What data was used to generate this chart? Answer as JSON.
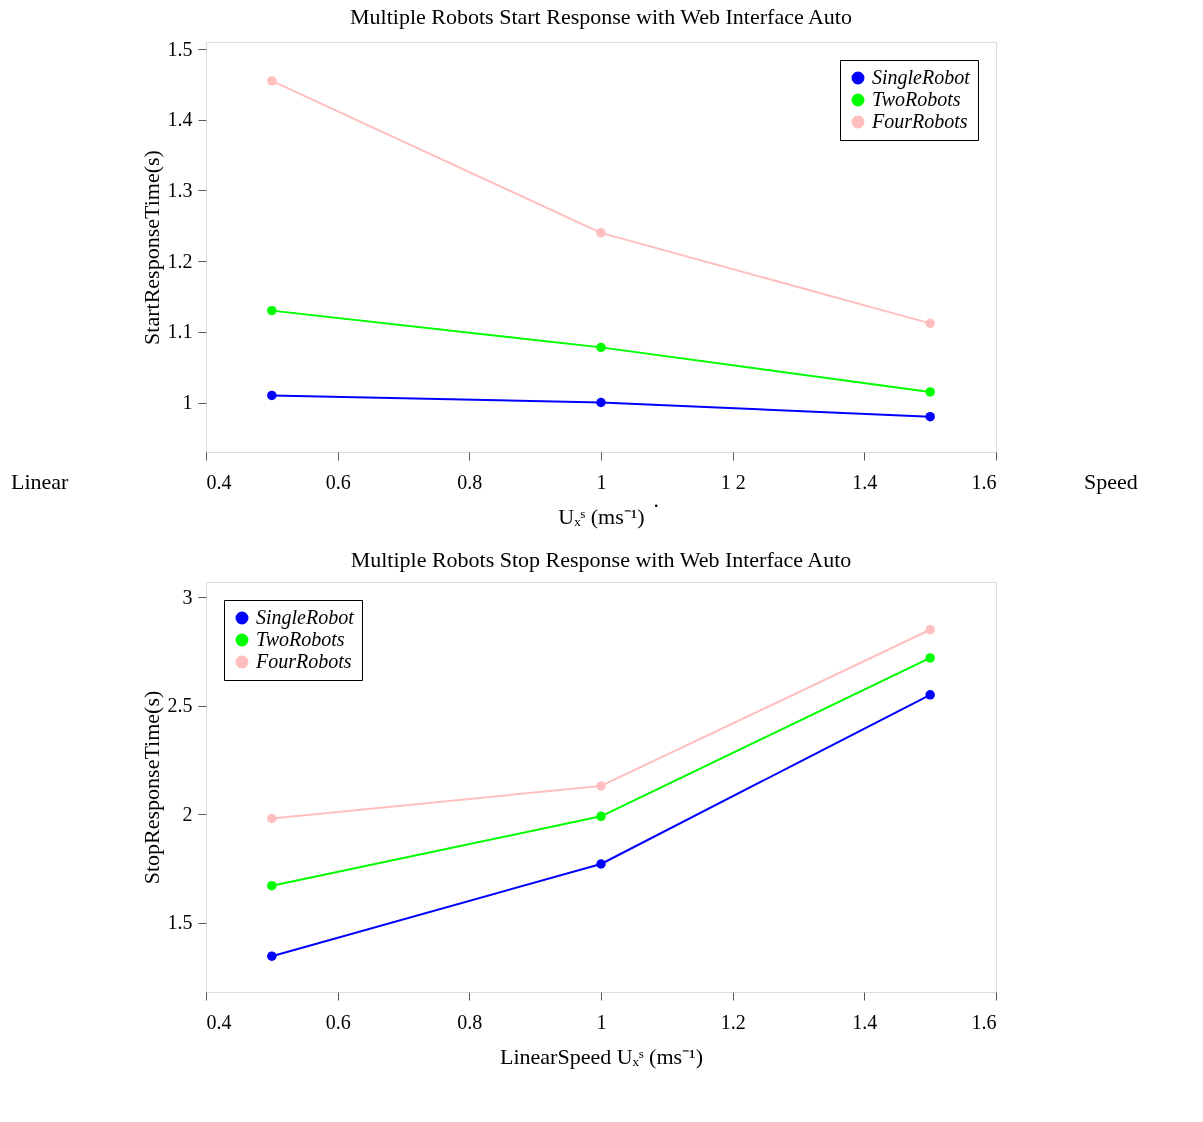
{
  "chart_data": [
    {
      "type": "line",
      "title": "Multiple Robots Start Response with Web Interface Auto",
      "xlabel": "Uₓˢ (ms⁻¹)",
      "ylabel": "StartResponseTime(s)",
      "x": [
        0.5,
        1,
        1.5
      ],
      "series": [
        {
          "name": "SingleRobot",
          "color": "#0000ff",
          "values": [
            1.01,
            1.0,
            0.98
          ]
        },
        {
          "name": "TwoRobots",
          "color": "#00ff00",
          "values": [
            1.13,
            1.078,
            1.015
          ]
        },
        {
          "name": "FourRobots",
          "color": "#ffbfbf",
          "values": [
            1.455,
            1.24,
            1.112
          ]
        }
      ],
      "xlim": [
        0.4,
        1.6
      ],
      "xticks": [
        {
          "value": 0.4,
          "label": "0.4"
        },
        {
          "value": 0.6,
          "label": "0.6"
        },
        {
          "value": 0.8,
          "label": "0.8"
        },
        1,
        {
          "value": 1.2,
          "label": "1 2"
        },
        {
          "value": 1.4,
          "label": "1.4"
        },
        {
          "value": 1.6,
          "label": "1.6"
        }
      ],
      "ylim": [
        0.93,
        1.51
      ],
      "yticks": [
        1,
        1.1,
        1.2,
        1.3,
        1.4,
        1.5
      ],
      "annotations": [
        "Linear",
        "Speed",
        "."
      ],
      "legend": "top right",
      "marker": "circle",
      "line_style": "solid",
      "grid": false
    },
    {
      "type": "line",
      "title": "Multiple Robots Stop Response with Web Interface Auto",
      "xlabel": "LinearSpeed Uₓˢ (ms⁻¹)",
      "ylabel": "StopResponseTime(s)",
      "x": [
        0.5,
        1,
        1.5
      ],
      "series": [
        {
          "name": "SingleRobot",
          "color": "#0000ff",
          "values": [
            1.345,
            1.77,
            2.55
          ]
        },
        {
          "name": "TwoRobots",
          "color": "#00ff00",
          "values": [
            1.67,
            1.99,
            2.72
          ]
        },
        {
          "name": "FourRobots",
          "color": "#ffbfbf",
          "values": [
            1.98,
            2.13,
            2.85
          ]
        }
      ],
      "xlim": [
        0.4,
        1.6
      ],
      "xticks": [
        {
          "value": 0.4,
          "label": "0.4"
        },
        {
          "value": 0.6,
          "label": "0.6"
        },
        {
          "value": 0.8,
          "label": "0.8"
        },
        1,
        1.2,
        1.4,
        1.6
      ],
      "ylim": [
        1.18,
        3.07
      ],
      "yticks": [
        1.5,
        2,
        2.5,
        3
      ],
      "legend": "top left",
      "marker": "circle",
      "line_style": "solid",
      "grid": false
    }
  ]
}
